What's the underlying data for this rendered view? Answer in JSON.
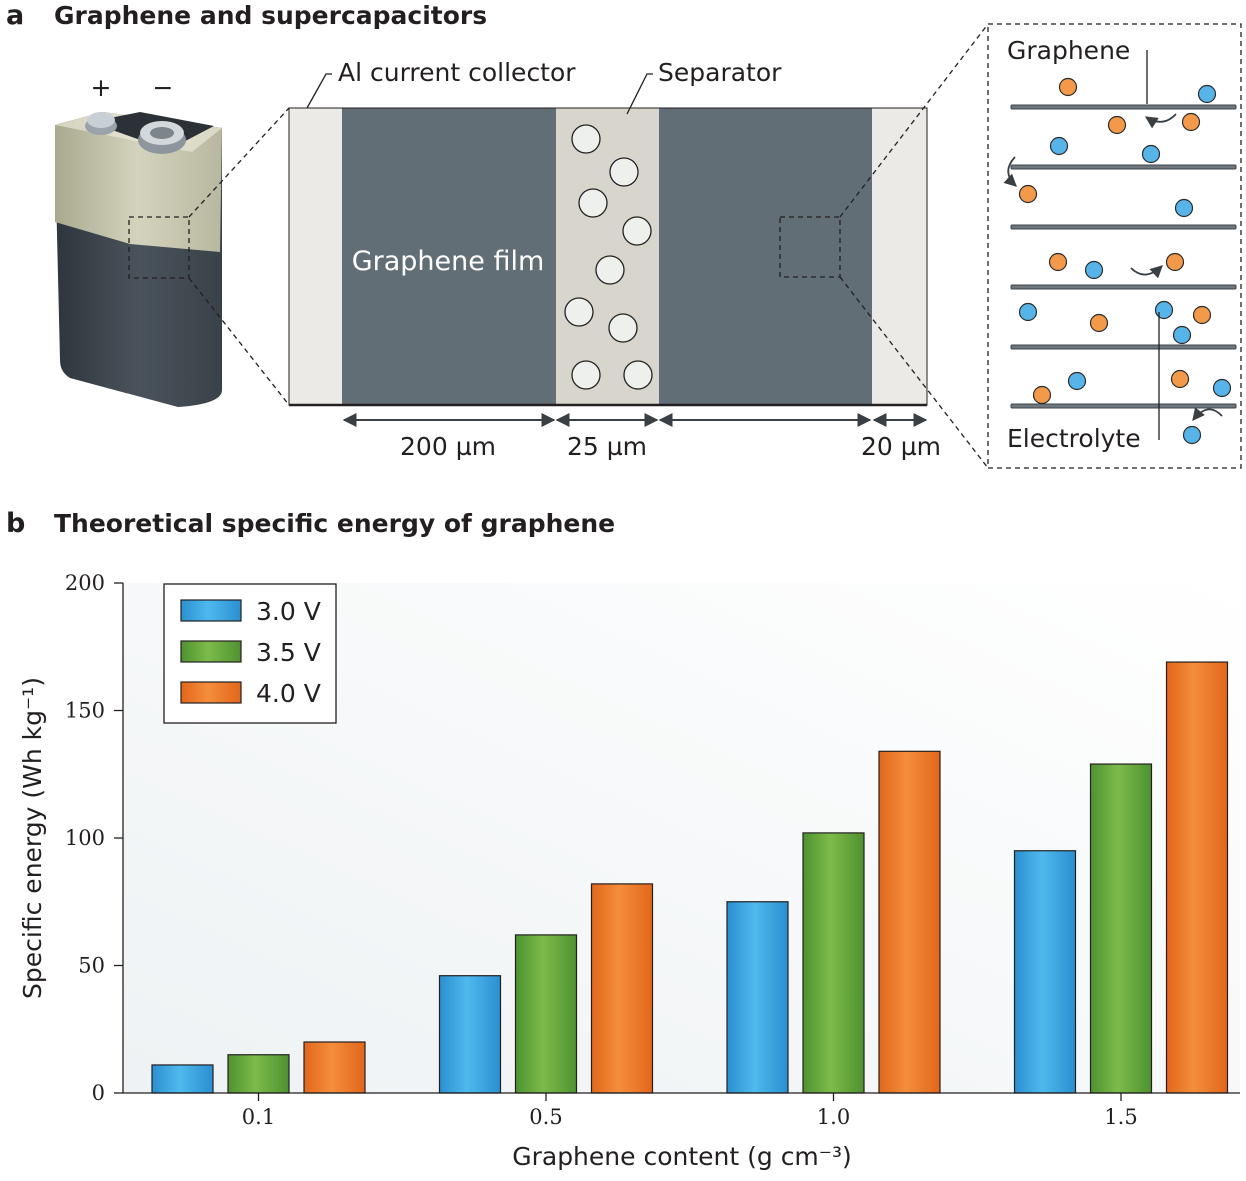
{
  "panel_a": {
    "letter": "a",
    "title": "Graphene and supercapacitors",
    "battery": {
      "plus": "+",
      "minus": "−"
    },
    "labels": {
      "collector": "Al current collector",
      "separator": "Separator",
      "film": "Graphene film",
      "graphene": "Graphene",
      "electrolyte": "Electrolyte"
    },
    "dimensions": {
      "film": "200 µm",
      "separator": "25 µm",
      "collector": "20 µm"
    },
    "colors": {
      "film": "#626e76",
      "separator": "#d8d6cc",
      "collector": "#eceae6",
      "ion_orange": "#f29a4a",
      "ion_blue": "#56b4e9"
    }
  },
  "panel_b": {
    "letter": "b",
    "title": "Theoretical specific energy of graphene"
  },
  "chart_data": {
    "type": "bar",
    "categories": [
      "0.1",
      "0.5",
      "1.0",
      "1.5"
    ],
    "series": [
      {
        "name": "3.0 V",
        "color": "#3aa7e0",
        "values": [
          11,
          46,
          75,
          95
        ]
      },
      {
        "name": "3.5 V",
        "color": "#6aaa3a",
        "values": [
          15,
          62,
          102,
          129
        ]
      },
      {
        "name": "4.0 V",
        "color": "#ef7a26",
        "values": [
          20,
          82,
          134,
          169
        ]
      }
    ],
    "xlabel": "Graphene content (g cm⁻³)",
    "ylabel": "Specific energy (Wh kg⁻¹)",
    "ylim": [
      0,
      200
    ],
    "yticks": [
      "0",
      "50",
      "100",
      "150",
      "200"
    ],
    "legend_placement": "top-left",
    "grid": false
  }
}
